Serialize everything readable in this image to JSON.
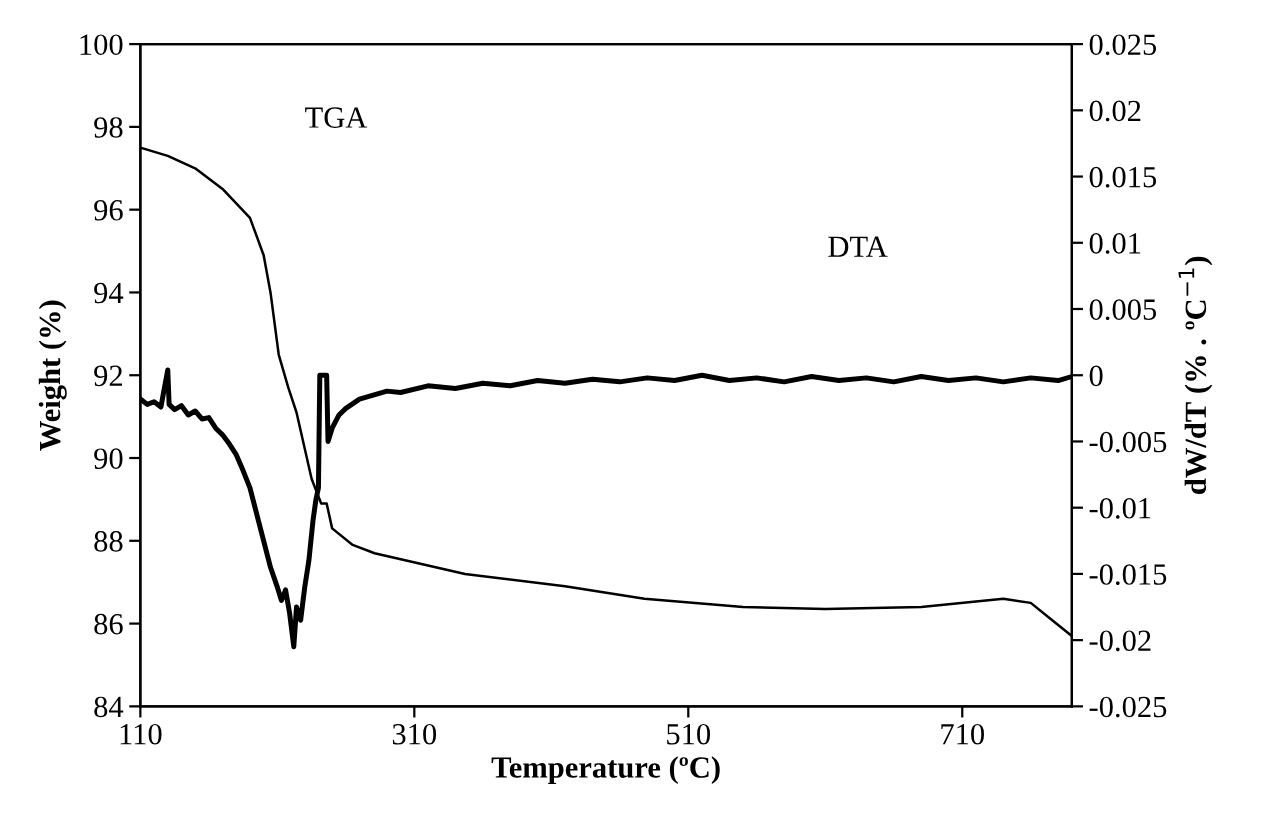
{
  "chart_data": {
    "type": "line",
    "xlabel": "Temperature (ºC)",
    "ylabel": "Weight (%)",
    "y2label": "dW/dT (% . ºC$^{−1}$)",
    "annotations": [
      "TGA",
      "DTA"
    ],
    "xlim": [
      110,
      790
    ],
    "xticks": [
      110,
      310,
      510,
      710
    ],
    "ylim": [
      84,
      100
    ],
    "yticks": [
      84,
      86,
      88,
      90,
      92,
      94,
      96,
      98,
      100
    ],
    "y2lim": [
      -0.025,
      0.025
    ],
    "y2ticks": [
      -0.025,
      -0.02,
      -0.015,
      -0.01,
      -0.005,
      0,
      0.005,
      0.01,
      0.015,
      0.02,
      0.025
    ],
    "grid": false,
    "legend": false,
    "series": [
      {
        "color": "#000000",
        "x": [
          110,
          130,
          150,
          170,
          190,
          200,
          205,
          211,
          218,
          224,
          235,
          242,
          246,
          250,
          265,
          281,
          347,
          420,
          478,
          550,
          610,
          680,
          740,
          760,
          775,
          790
        ],
        "values": [
          97.5,
          97.3,
          97.0,
          96.5,
          95.8,
          94.9,
          94.0,
          92.5,
          91.7,
          91.1,
          89.5,
          88.9,
          88.9,
          88.3,
          87.9,
          87.7,
          87.2,
          86.9,
          86.6,
          86.4,
          86.35,
          86.4,
          86.6,
          86.5,
          86.1,
          85.7
        ]
      },
      {
        "color": "#000000",
        "axis": "y2",
        "x": [
          110,
          115,
          120,
          125,
          130,
          131,
          135,
          140,
          145,
          150,
          155,
          160,
          165,
          170,
          175,
          180,
          185,
          190,
          195,
          200,
          205,
          210,
          213,
          216,
          219,
          222,
          224,
          227,
          230,
          233,
          236,
          238,
          240,
          241,
          246,
          247,
          250,
          255,
          260,
          270,
          280,
          290,
          300,
          320,
          340,
          360,
          380,
          400,
          420,
          440,
          460,
          480,
          500,
          520,
          540,
          560,
          580,
          600,
          620,
          640,
          660,
          680,
          700,
          720,
          740,
          760,
          780,
          790
        ],
        "values": [
          -0.0018,
          -0.0022,
          -0.002,
          -0.0024,
          0.0004,
          -0.0022,
          -0.0026,
          -0.0023,
          -0.003,
          -0.0027,
          -0.0033,
          -0.0032,
          -0.004,
          -0.0045,
          -0.0052,
          -0.006,
          -0.0072,
          -0.0085,
          -0.0105,
          -0.0125,
          -0.0145,
          -0.016,
          -0.017,
          -0.0162,
          -0.018,
          -0.0205,
          -0.0175,
          -0.0185,
          -0.016,
          -0.014,
          -0.011,
          -0.0095,
          -0.0085,
          0.0,
          0.0,
          -0.005,
          -0.004,
          -0.003,
          -0.0025,
          -0.0018,
          -0.0015,
          -0.0012,
          -0.0013,
          -0.0008,
          -0.001,
          -0.0006,
          -0.0008,
          -0.0004,
          -0.0006,
          -0.0003,
          -0.0005,
          -0.0002,
          -0.0004,
          0.0,
          -0.0004,
          -0.0002,
          -0.0005,
          -0.0001,
          -0.0004,
          -0.0002,
          -0.0005,
          -0.0001,
          -0.0004,
          -0.0002,
          -0.0005,
          -0.0002,
          -0.0004,
          -0.0001
        ]
      }
    ]
  }
}
